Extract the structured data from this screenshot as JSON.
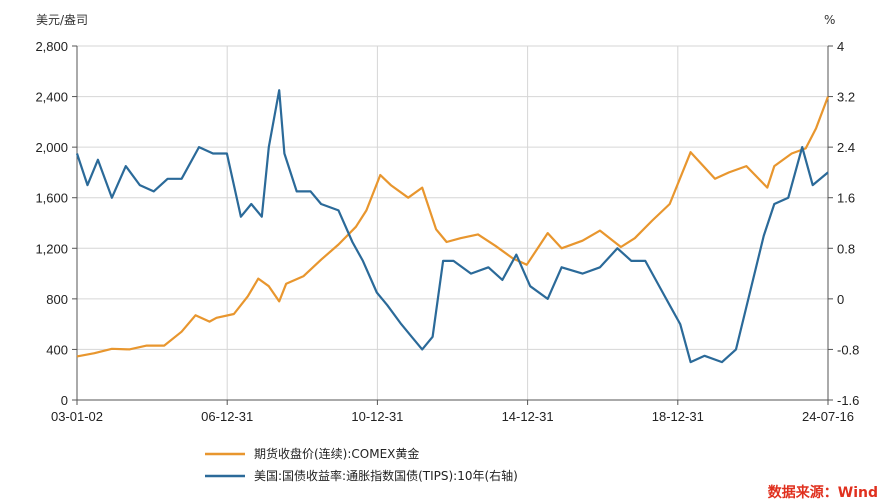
{
  "chart_data": {
    "type": "line",
    "left_unit": "美元/盎司",
    "right_unit": "%",
    "ylim_left": [
      0,
      2800
    ],
    "ylim_right": [
      -1.6,
      4
    ],
    "yticks_left": [
      "0",
      "400",
      "800",
      "1,200",
      "1,600",
      "2,000",
      "2,400",
      "2,800"
    ],
    "yticks_right": [
      "-1.6",
      "-0.8",
      "0",
      "0.8",
      "1.6",
      "2.4",
      "3.2",
      "4"
    ],
    "xticks": [
      "03-01-02",
      "06-12-31",
      "10-12-31",
      "14-12-31",
      "18-12-31",
      "24-07-16"
    ],
    "grid": true,
    "legend_position": "bottom",
    "source": "数据来源：Wind",
    "series": [
      {
        "name": "期货收盘价(连续):COMEX黄金",
        "axis": "left",
        "color": "#e8962e",
        "x": [
          2003.0,
          2003.5,
          2004.0,
          2004.5,
          2005.0,
          2005.5,
          2006.0,
          2006.4,
          2006.8,
          2007.0,
          2007.5,
          2007.9,
          2008.2,
          2008.5,
          2008.8,
          2009.0,
          2009.5,
          2010.0,
          2010.5,
          2011.0,
          2011.3,
          2011.7,
          2012.0,
          2012.5,
          2012.9,
          2013.3,
          2013.6,
          2014.0,
          2014.5,
          2015.0,
          2015.5,
          2015.9,
          2016.5,
          2016.9,
          2017.5,
          2018.0,
          2018.6,
          2019.0,
          2019.5,
          2020.0,
          2020.6,
          2020.9,
          2021.3,
          2021.7,
          2022.2,
          2022.8,
          2023.0,
          2023.5,
          2023.9,
          2024.2,
          2024.54
        ],
        "y": [
          345,
          370,
          405,
          400,
          430,
          430,
          540,
          670,
          620,
          650,
          680,
          820,
          960,
          900,
          780,
          920,
          980,
          1110,
          1230,
          1370,
          1500,
          1780,
          1700,
          1600,
          1680,
          1350,
          1250,
          1280,
          1310,
          1220,
          1120,
          1070,
          1320,
          1200,
          1260,
          1340,
          1210,
          1280,
          1420,
          1550,
          1960,
          1870,
          1750,
          1800,
          1850,
          1680,
          1850,
          1950,
          1990,
          2150,
          2400
        ]
      },
      {
        "name": "美国:国债收益率:通胀指数国债(TIPS):10年(右轴)",
        "axis": "right",
        "color": "#2b6a99",
        "x": [
          2003.0,
          2003.3,
          2003.6,
          2004.0,
          2004.4,
          2004.8,
          2005.2,
          2005.6,
          2006.0,
          2006.5,
          2006.9,
          2007.3,
          2007.7,
          2008.0,
          2008.3,
          2008.5,
          2008.8,
          2008.95,
          2009.3,
          2009.7,
          2010.0,
          2010.5,
          2010.9,
          2011.2,
          2011.6,
          2011.9,
          2012.3,
          2012.6,
          2012.9,
          2013.2,
          2013.5,
          2013.8,
          2014.3,
          2014.8,
          2015.2,
          2015.6,
          2016.0,
          2016.5,
          2016.9,
          2017.5,
          2018.0,
          2018.5,
          2018.9,
          2019.3,
          2019.8,
          2020.0,
          2020.3,
          2020.6,
          2021.0,
          2021.5,
          2021.9,
          2022.3,
          2022.7,
          2023.0,
          2023.4,
          2023.8,
          2024.1,
          2024.54
        ],
        "y": [
          2.3,
          1.8,
          2.2,
          1.6,
          2.1,
          1.8,
          1.7,
          1.9,
          1.9,
          2.4,
          2.3,
          2.3,
          1.3,
          1.5,
          1.3,
          2.4,
          3.3,
          2.3,
          1.7,
          1.7,
          1.5,
          1.4,
          0.9,
          0.6,
          0.1,
          -0.1,
          -0.4,
          -0.6,
          -0.8,
          -0.6,
          0.6,
          0.6,
          0.4,
          0.5,
          0.3,
          0.7,
          0.2,
          0.0,
          0.5,
          0.4,
          0.5,
          0.8,
          0.6,
          0.6,
          0.1,
          -0.1,
          -0.4,
          -1.0,
          -0.9,
          -1.0,
          -0.8,
          0.1,
          1.0,
          1.5,
          1.6,
          2.4,
          1.8,
          2.0
        ]
      }
    ]
  }
}
